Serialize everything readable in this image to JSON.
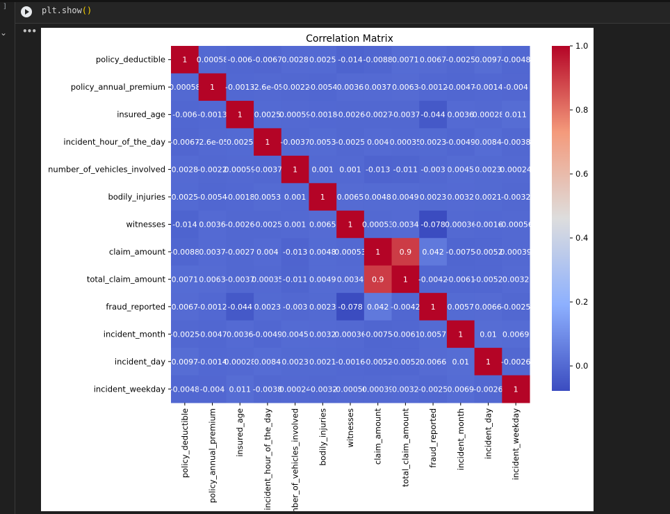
{
  "notebook": {
    "cell_bracket": "]",
    "code_prefix": "plt.show",
    "code_parens": "()",
    "collapse_icon": "chevron-down-icon",
    "more_label": "•••"
  },
  "chart_data": {
    "type": "heatmap",
    "title": "Correlation Matrix",
    "labels": [
      "policy_deductible",
      "policy_annual_premium",
      "insured_age",
      "incident_hour_of_the_day",
      "number_of_vehicles_involved",
      "bodily_injuries",
      "witnesses",
      "claim_amount",
      "total_claim_amount",
      "fraud_reported",
      "incident_month",
      "incident_day",
      "incident_weekday"
    ],
    "annotations": [
      [
        "1",
        "0.00058",
        "-0.006",
        "-0.0067",
        "0.0028",
        "0.0025",
        "-0.014",
        "-0.0088",
        "0.0071",
        "0.0067",
        "-0.0025",
        "0.0097",
        "-0.0048"
      ],
      [
        "0.00058",
        "1",
        "-0.0013",
        "-2.6e-05",
        "-0.0022",
        "-0.0054",
        "0.0036",
        "0.0037",
        "0.0063",
        "-0.0012",
        "-0.0047",
        "-0.0014",
        "-0.004"
      ],
      [
        "-0.006",
        "-0.0013",
        "1",
        "0.0025",
        "0.00059",
        "-0.0018",
        "-0.0026",
        "-0.0027",
        "-0.0037",
        "-0.044",
        "0.0036",
        "0.00028",
        "0.011"
      ],
      [
        "-0.0067",
        "-2.6e-05",
        "0.0025",
        "1",
        "-0.0037",
        "0.0053",
        "-0.0025",
        "0.004",
        "0.00035",
        "0.0023",
        "-0.0049",
        "0.0084",
        "-0.0038"
      ],
      [
        "0.0028",
        "-0.0022",
        "0.00059",
        "-0.0037",
        "1",
        "0.001",
        "0.001",
        "-0.013",
        "-0.011",
        "-0.003",
        "0.0045",
        "0.0023",
        "0.00024"
      ],
      [
        "0.0025",
        "-0.0054",
        "-0.0018",
        "0.0053",
        "0.001",
        "1",
        "0.0065",
        "0.0048",
        "0.0049",
        "0.0023",
        "0.0032",
        "0.0021",
        "-0.0032"
      ],
      [
        "-0.014",
        "0.0036",
        "-0.0026",
        "-0.0025",
        "0.001",
        "0.0065",
        "1",
        "0.00053",
        "0.0034",
        "-0.078",
        "0.00036",
        "-0.0016",
        "-0.00056"
      ],
      [
        "-0.0088",
        "0.0037",
        "-0.0027",
        "0.004",
        "-0.013",
        "0.0048",
        "0.00053",
        "1",
        "0.9",
        "0.042",
        "-0.0075",
        "-0.0052",
        "0.00039"
      ],
      [
        "0.0071",
        "0.0063",
        "-0.0037",
        "0.00035",
        "-0.011",
        "0.0049",
        "0.0034",
        "0.9",
        "1",
        "-0.0042",
        "-0.0061",
        "-0.0052",
        "0.0032"
      ],
      [
        "0.0067",
        "-0.0012",
        "-0.044",
        "0.0023",
        "-0.003",
        "0.0023",
        "-0.078",
        "0.042",
        "-0.0042",
        "1",
        "0.0057",
        "0.0066",
        "-0.0025"
      ],
      [
        "-0.0025",
        "-0.0047",
        "0.0036",
        "-0.0049",
        "0.0045",
        "0.0032",
        "0.00036",
        "-0.0075",
        "-0.0061",
        "0.0057",
        "1",
        "0.01",
        "0.0069"
      ],
      [
        "0.0097",
        "-0.0014",
        "0.00028",
        "0.0084",
        "0.0023",
        "0.0021",
        "-0.0016",
        "-0.0052",
        "-0.0052",
        "0.0066",
        "0.01",
        "1",
        "-0.0026"
      ],
      [
        "-0.0048",
        "-0.004",
        "0.011",
        "-0.0038",
        "0.00024",
        "-0.0032",
        "-0.00056",
        "0.00039",
        "0.0032",
        "-0.0025",
        "0.0069",
        "-0.0026",
        "1"
      ]
    ],
    "colormap": "coolwarm",
    "vmin": -0.078,
    "vmax": 1.0,
    "colorbar_ticks": [
      "0.0",
      "0.2",
      "0.4",
      "0.6",
      "0.8",
      "1.0"
    ],
    "colorbar_tick_values": [
      0,
      0.2,
      0.4,
      0.6,
      0.8,
      1.0
    ],
    "xlabel": "",
    "ylabel": ""
  }
}
